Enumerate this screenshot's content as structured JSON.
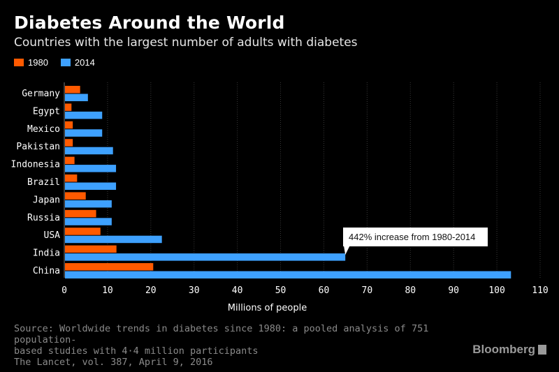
{
  "title": "Diabetes Around the World",
  "subtitle": "Countries with the largest number of adults with diabetes",
  "source": {
    "line1": "Source: Worldwide trends in diabetes since 1980: a pooled analysis of 751 population-",
    "line2": "based studies with 4·4 million participants",
    "line3": "The Lancet, vol. 387, April 9, 2016"
  },
  "logo": "Bloomberg",
  "colors": {
    "s1980": "#ff5a00",
    "s2014": "#3ea1ff",
    "grid": "#3a3a3a",
    "background": "#000000"
  },
  "chart_data": {
    "type": "bar",
    "orientation": "horizontal",
    "categories": [
      "Germany",
      "Egypt",
      "Mexico",
      "Pakistan",
      "Indonesia",
      "Brazil",
      "Japan",
      "Russia",
      "USA",
      "India",
      "China"
    ],
    "series": [
      {
        "name": "1980",
        "values": [
          3.5,
          1.5,
          1.8,
          1.8,
          2.2,
          2.8,
          4.8,
          7.2,
          8.2,
          11.9,
          20.4
        ]
      },
      {
        "name": "2014",
        "values": [
          5.3,
          8.6,
          8.6,
          11.1,
          11.8,
          11.8,
          10.8,
          10.8,
          22.4,
          64.8,
          103.1
        ]
      }
    ],
    "xlabel": "Millions of people",
    "ylabel": "",
    "xlim": [
      0,
      110
    ],
    "xticks": [
      0,
      10,
      20,
      30,
      40,
      50,
      60,
      70,
      80,
      90,
      100,
      110
    ],
    "grid": true,
    "legend_position": "top-left",
    "annotation": {
      "text": "442% increase from 1980-2014",
      "category": "India",
      "series": "2014"
    }
  }
}
